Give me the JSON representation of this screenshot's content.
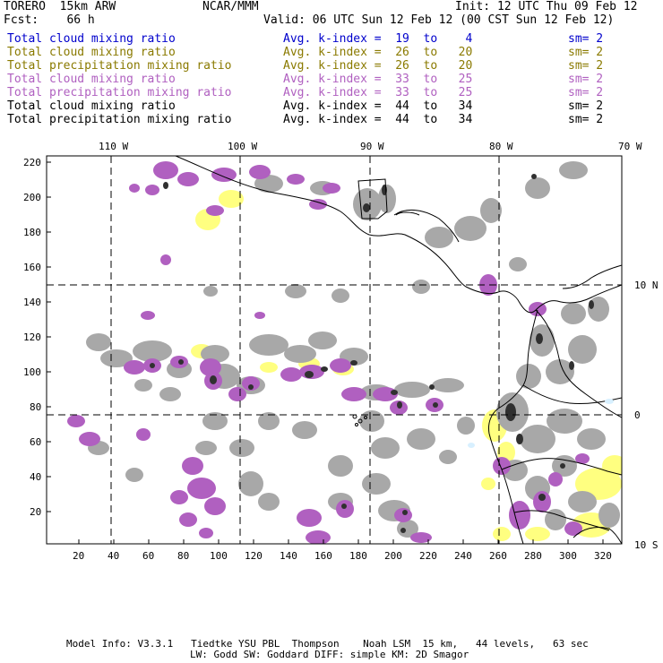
{
  "header": {
    "model": "TORERO  15km ARW",
    "org": "NCAR/MMM",
    "init": "Init: 12 UTC Thu 09 Feb 12",
    "fcst": "Fcst:    66 h",
    "valid": "Valid: 06 UTC Sun 12 Feb 12 (00 CST Sun 12 Feb 12)"
  },
  "legend": [
    {
      "name": "Total cloud mixing ratio",
      "kidx": "Avg. k-index =  19  to    4",
      "sm": "sm= 2",
      "color": "#0000cc"
    },
    {
      "name": "Total cloud mixing ratio",
      "kidx": "Avg. k-index =  26  to   20",
      "sm": "sm= 2",
      "color": "#8a7a00"
    },
    {
      "name": "Total precipitation mixing ratio",
      "kidx": "Avg. k-index =  26  to   20",
      "sm": "sm= 2",
      "color": "#8a7a00"
    },
    {
      "name": "Total cloud mixing ratio",
      "kidx": "Avg. k-index =  33  to   25",
      "sm": "sm= 2",
      "color": "#b060c0"
    },
    {
      "name": "Total precipitation mixing ratio",
      "kidx": "Avg. k-index =  33  to   25",
      "sm": "sm= 2",
      "color": "#b060c0"
    },
    {
      "name": "Total cloud mixing ratio",
      "kidx": "Avg. k-index =  44  to   34",
      "sm": "sm= 2",
      "color": "#000000"
    },
    {
      "name": "Total precipitation mixing ratio",
      "kidx": "Avg. k-index =  44  to   34",
      "sm": "sm= 2",
      "color": "#000000"
    }
  ],
  "axes": {
    "top_lon": [
      "110 W",
      "100 W",
      "90 W",
      "80 W",
      "70 W"
    ],
    "right_lat": [
      "10 N",
      "0",
      "10 S"
    ],
    "y_ticks": [
      "220",
      "200",
      "180",
      "160",
      "140",
      "120",
      "100",
      "80",
      "60",
      "40",
      "20"
    ],
    "x_ticks": [
      "20",
      "40",
      "60",
      "80",
      "100",
      "120",
      "140",
      "160",
      "180",
      "200",
      "220",
      "240",
      "260",
      "280",
      "300",
      "320"
    ]
  },
  "footer": {
    "line1": "Model Info: V3.3.1   Tiedtke YSU PBL  Thompson    Noah LSM  15 km,   44 levels,   63 sec",
    "line2": "LW: Godd SW: Goddard DIFF: simple KM: 2D Smagor"
  },
  "colors": {
    "gray": "#a8a8a8",
    "purple": "#b060c0",
    "yellow": "#ffff80",
    "dark": "#303030"
  }
}
